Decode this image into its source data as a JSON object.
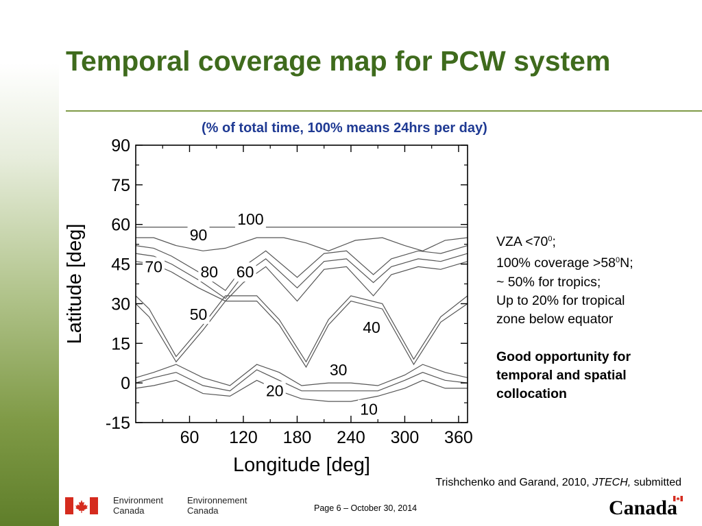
{
  "slide": {
    "title": "Temporal coverage map for PCW system",
    "subtitle": "(% of total time, 100% means 24hrs per day)",
    "notes": {
      "vza_prefix": "VZA <70",
      "vza_sup": "0",
      "vza_suffix": ";",
      "coverage_prefix": "100% coverage >58",
      "coverage_sup": "0",
      "coverage_suffix": "N;",
      "tropics": "~ 50% for tropics;",
      "tropical_line1": "Up to 20% for tropical",
      "tropical_line2": "zone below equator",
      "opportunity_line1": "Good opportunity for",
      "opportunity_line2": "temporal and spatial",
      "opportunity_line3": "collocation"
    },
    "citation": {
      "authors": "Trishchenko and Garand, 2010, ",
      "journal": "JTECH,",
      "status": " submitted"
    },
    "page_footer": "Page 6 – October 30, 2014",
    "logos": {
      "dept_en_line1": "Environment",
      "dept_en_line2": "Canada",
      "dept_fr_line1": "Environnement",
      "dept_fr_line2": "Canada",
      "wordmark": "Canada",
      "flag_icon": "canada-flag-icon"
    },
    "colors": {
      "title": "#3f6b1d",
      "subtitle": "#1f3a93",
      "accent": "#7f9a46",
      "flag_red": "#d52b1e"
    }
  },
  "chart_data": {
    "type": "line",
    "subtype": "contour",
    "xlabel": "Longitude [deg]",
    "ylabel": "Latitude [deg]",
    "xlim": [
      0,
      370
    ],
    "ylim": [
      -15,
      90
    ],
    "xticks": [
      60,
      120,
      180,
      240,
      300,
      360
    ],
    "yticks": [
      -15,
      0,
      15,
      30,
      45,
      60,
      75,
      90
    ],
    "grid": false,
    "series": [
      {
        "name": "100",
        "x": [
          0,
          90,
          180,
          270,
          370
        ],
        "y": [
          59,
          59,
          59,
          59,
          59
        ]
      },
      {
        "name": "90",
        "x": [
          0,
          20,
          45,
          75,
          100,
          135,
          165,
          190,
          215,
          245,
          275,
          300,
          320,
          345,
          370
        ],
        "y": [
          55,
          55,
          52,
          50,
          51,
          55,
          55,
          53,
          50,
          54,
          55,
          52,
          50,
          54,
          55
        ]
      },
      {
        "name": "80",
        "x": [
          0,
          20,
          40,
          70,
          100,
          120,
          145,
          180,
          210,
          235,
          265,
          285,
          315,
          340,
          370
        ],
        "y": [
          52,
          51,
          48,
          42,
          35,
          44,
          50,
          40,
          49,
          50,
          41,
          47,
          50,
          49,
          52
        ]
      },
      {
        "name": "70",
        "x": [
          0,
          20,
          40,
          70,
          100,
          120,
          145,
          180,
          210,
          235,
          265,
          285,
          315,
          340,
          370
        ],
        "y": [
          49,
          48,
          45,
          39,
          32,
          41,
          47,
          36,
          46,
          47,
          38,
          44,
          47,
          46,
          49
        ]
      },
      {
        "name": "60",
        "x": [
          0,
          20,
          40,
          70,
          100,
          120,
          145,
          180,
          210,
          235,
          265,
          285,
          315,
          340,
          370
        ],
        "y": [
          46,
          45,
          42,
          36,
          31,
          38,
          44,
          31,
          43,
          44,
          33,
          41,
          44,
          43,
          46
        ]
      },
      {
        "name": "50",
        "x": [
          0,
          15,
          45,
          75,
          100,
          135,
          160,
          190,
          215,
          240,
          275,
          310,
          340,
          370
        ],
        "y": [
          33,
          28,
          10,
          22,
          33,
          33,
          24,
          8,
          24,
          33,
          30,
          9,
          25,
          33
        ]
      },
      {
        "name": "40",
        "x": [
          0,
          15,
          45,
          75,
          100,
          135,
          160,
          190,
          215,
          240,
          275,
          310,
          340,
          370
        ],
        "y": [
          30,
          25,
          8,
          20,
          31,
          31,
          22,
          6,
          22,
          31,
          28,
          7,
          23,
          30
        ]
      },
      {
        "name": "30",
        "x": [
          0,
          20,
          45,
          75,
          105,
          135,
          160,
          185,
          215,
          240,
          270,
          300,
          320,
          345,
          370
        ],
        "y": [
          2,
          4,
          7,
          2,
          -1,
          7,
          4,
          -1,
          0,
          0,
          -1,
          3,
          7,
          4,
          2
        ]
      },
      {
        "name": "20",
        "x": [
          0,
          20,
          45,
          75,
          105,
          135,
          160,
          185,
          215,
          240,
          270,
          300,
          320,
          345,
          370
        ],
        "y": [
          0,
          2,
          4,
          -1,
          -3,
          5,
          1,
          -3,
          -3,
          -3,
          -3,
          1,
          4,
          1,
          0
        ]
      },
      {
        "name": "10",
        "x": [
          0,
          20,
          45,
          75,
          105,
          135,
          160,
          185,
          215,
          240,
          270,
          300,
          320,
          345,
          370
        ],
        "y": [
          -2,
          -1,
          1,
          -4,
          -5,
          1,
          -3,
          -6,
          -7,
          -7,
          -5,
          -2,
          1,
          -2,
          -2
        ]
      }
    ],
    "contour_labels": [
      {
        "text": "100",
        "x": 128,
        "y": 62
      },
      {
        "text": "90",
        "x": 70,
        "y": 56
      },
      {
        "text": "80",
        "x": 82,
        "y": 42
      },
      {
        "text": "70",
        "x": 20,
        "y": 44
      },
      {
        "text": "60",
        "x": 122,
        "y": 42
      },
      {
        "text": "50",
        "x": 70,
        "y": 26
      },
      {
        "text": "40",
        "x": 263,
        "y": 21
      },
      {
        "text": "30",
        "x": 226,
        "y": 5
      },
      {
        "text": "20",
        "x": 155,
        "y": -3
      },
      {
        "text": "10",
        "x": 260,
        "y": -10
      }
    ]
  }
}
